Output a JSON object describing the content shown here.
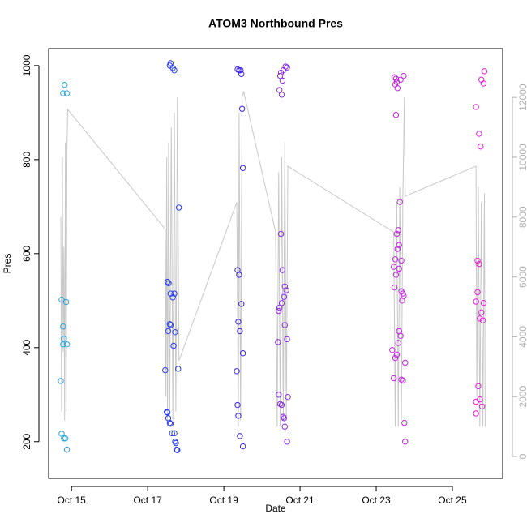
{
  "chart_data": {
    "type": "scatter",
    "title": "ATOM3 Northbound Pres",
    "x_label": "Date",
    "y_label": "Pres",
    "xlim": [
      14.4,
      26.32
    ],
    "xticks": [
      {
        "value": 15,
        "label": "Oct 15"
      },
      {
        "value": 17,
        "label": "Oct 17"
      },
      {
        "value": 19,
        "label": "Oct 19"
      },
      {
        "value": 21,
        "label": "Oct 21"
      },
      {
        "value": 23,
        "label": "Oct 23"
      },
      {
        "value": 25,
        "label": "Oct 25"
      }
    ],
    "ylim": [
      122,
      1036
    ],
    "yticks": [
      200,
      400,
      600,
      800,
      1000
    ],
    "y2lim": [
      -731,
      13630
    ],
    "y2ticks": [
      0,
      2000,
      4000,
      6000,
      8000,
      10000,
      12000
    ],
    "y2_color": "#b0b0b0",
    "series": [
      {
        "type": "line",
        "axis": "y2",
        "color": "#c8c8c8",
        "x": [
          14.72,
          14.74,
          14.76,
          14.78,
          14.8,
          14.82,
          14.84,
          14.86,
          14.88,
          14.9,
          17.46,
          17.48,
          17.5,
          17.52,
          17.55,
          17.58,
          17.62,
          17.66,
          17.7,
          17.74,
          17.78,
          17.82,
          19.34,
          19.38,
          19.4,
          19.44,
          19.48,
          19.52,
          20.36,
          20.4,
          20.44,
          20.48,
          20.52,
          20.56,
          20.6,
          20.64,
          20.68,
          23.46,
          23.5,
          23.54,
          23.58,
          23.62,
          23.66,
          23.7,
          23.74,
          23.76,
          25.62,
          25.64,
          25.68,
          25.72,
          25.76,
          25.8,
          25.84,
          25.86
        ],
        "values": [
          8000,
          1500,
          10000,
          3500,
          7000,
          1200,
          10500,
          1500,
          10200,
          11600,
          7600,
          2000,
          10000,
          1000,
          10500,
          1500,
          11000,
          1200,
          11500,
          1500,
          12000,
          3200,
          8500,
          1000,
          11500,
          1200,
          12000,
          12200,
          7500,
          1000,
          9500,
          1000,
          10000,
          1200,
          10500,
          1200,
          9700,
          7500,
          1000,
          8500,
          1000,
          9000,
          1200,
          8700,
          12000,
          8700,
          9700,
          2000,
          9000,
          1000,
          8500,
          1000,
          8800,
          1000
        ]
      },
      {
        "color": "#29a3e0",
        "x": [
          14.78,
          14.82,
          14.88,
          14.74,
          14.78,
          14.8,
          14.78,
          14.88,
          14.86,
          14.72,
          14.74,
          14.8,
          14.84,
          14.88
        ],
        "values": [
          941,
          959,
          941,
          502,
          445,
          419,
          407,
          407,
          497,
          329,
          217,
          207,
          207,
          183
        ]
      },
      {
        "color": "#2a3ee8",
        "x": [
          17.58,
          17.6,
          17.66,
          17.7,
          17.82,
          17.52,
          17.55,
          17.6,
          17.7,
          17.66,
          17.58,
          17.6,
          17.54,
          17.72,
          17.68,
          17.8,
          17.46,
          17.5,
          17.52,
          17.54,
          17.58,
          17.6,
          17.64,
          17.7,
          17.72,
          17.74,
          17.76,
          17.78
        ],
        "values": [
          1000,
          1005,
          995,
          990,
          698,
          540,
          537,
          515,
          515,
          507,
          450,
          448,
          435,
          433,
          404,
          355,
          352,
          263,
          262,
          250,
          240,
          238,
          218,
          218,
          200,
          197,
          183,
          182
        ]
      },
      {
        "color": "#3a22e6",
        "x": [
          19.36,
          19.4,
          19.44,
          19.46,
          19.48,
          19.5,
          19.36,
          19.4,
          19.46,
          19.38,
          19.42,
          19.5,
          19.34,
          19.36,
          19.38,
          19.42,
          19.5
        ],
        "values": [
          992,
          990,
          990,
          982,
          908,
          782,
          565,
          555,
          493,
          455,
          435,
          388,
          350,
          278,
          255,
          212,
          190
        ]
      },
      {
        "color": "#8a2be2",
        "x": [
          20.62,
          20.66,
          20.56,
          20.5,
          20.48,
          20.54,
          20.46,
          20.52,
          20.5,
          20.54,
          20.6,
          20.64,
          20.58,
          20.52,
          20.46,
          20.44,
          20.6,
          20.66,
          20.42,
          20.44,
          20.68,
          20.48,
          20.52,
          20.56,
          20.58,
          20.6,
          20.66
        ],
        "values": [
          998,
          996,
          990,
          985,
          978,
          968,
          948,
          938,
          642,
          565,
          530,
          522,
          508,
          495,
          485,
          478,
          448,
          418,
          412,
          300,
          295,
          280,
          278,
          253,
          250,
          232,
          200
        ]
      },
      {
        "color": "#c224e0",
        "x": [
          23.48,
          23.52,
          23.54,
          23.5,
          23.56,
          23.64,
          23.72,
          23.52,
          23.62,
          23.58,
          23.54,
          23.6,
          23.56,
          23.5,
          23.66,
          23.46,
          23.6,
          23.52,
          23.48,
          23.66,
          23.7,
          23.72,
          23.68,
          23.6,
          23.64,
          23.58,
          23.42,
          23.54,
          23.5,
          23.76,
          23.46,
          23.66,
          23.7,
          23.74,
          23.76
        ],
        "values": [
          975,
          972,
          965,
          960,
          952,
          970,
          978,
          895,
          710,
          650,
          642,
          618,
          610,
          588,
          585,
          572,
          568,
          555,
          528,
          520,
          515,
          510,
          500,
          435,
          425,
          410,
          395,
          385,
          378,
          368,
          335,
          332,
          330,
          240,
          200
        ]
      },
      {
        "color": "#e020d0",
        "x": [
          25.84,
          25.76,
          25.82,
          25.62,
          25.7,
          25.74,
          25.66,
          25.7,
          25.66,
          25.62,
          25.82,
          25.76,
          25.72,
          25.8,
          25.68,
          25.72,
          25.62,
          25.78,
          25.62
        ],
        "values": [
          988,
          970,
          962,
          912,
          855,
          828,
          585,
          578,
          518,
          498,
          495,
          475,
          462,
          458,
          318,
          290,
          285,
          275,
          260
        ]
      }
    ]
  }
}
